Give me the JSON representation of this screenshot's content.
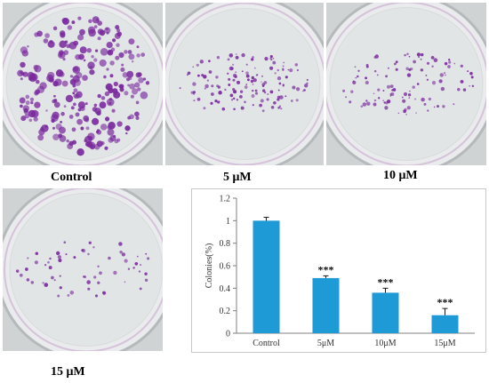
{
  "panels": [
    {
      "label": "Control",
      "colony_level": 1.0
    },
    {
      "label": "5 μM",
      "colony_level": 0.49
    },
    {
      "label": "10 μM",
      "colony_level": 0.36
    },
    {
      "label": "15 μM",
      "colony_level": 0.16
    }
  ],
  "colors": {
    "bar": "#1e9ad6",
    "colony": "#7a2a9e",
    "plate_bg": "#cfd3d4"
  },
  "chart_data": {
    "type": "bar",
    "categories": [
      "Control",
      "5μM",
      "10μM",
      "15μM"
    ],
    "values": [
      1.0,
      0.49,
      0.36,
      0.16
    ],
    "errors": [
      0.03,
      0.02,
      0.04,
      0.06
    ],
    "annotations": [
      "",
      "***",
      "***",
      "***"
    ],
    "title": "",
    "xlabel": "",
    "ylabel": "Colonies(%)",
    "ylim": [
      0,
      1.2
    ],
    "yticks": [
      "0",
      "0.2",
      "0.4",
      "0.6",
      "0.8",
      "1",
      "1.2"
    ],
    "grid": false,
    "legend": "none"
  }
}
